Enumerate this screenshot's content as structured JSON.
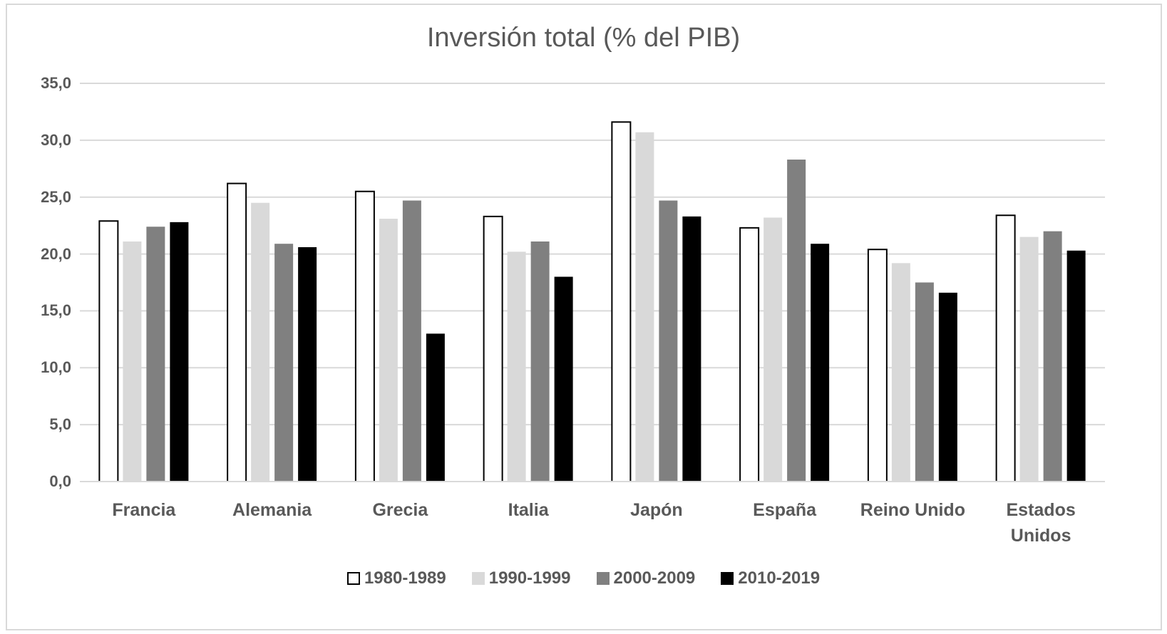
{
  "chart_data": {
    "type": "bar",
    "title": "Inversión total (% del PIB)",
    "categories": [
      "Francia",
      "Alemania",
      "Grecia",
      "Italia",
      "Japón",
      "España",
      "Reino Unido",
      "Estados Unidos"
    ],
    "series": [
      {
        "name": "1980-1989",
        "color": "#ffffff",
        "values": [
          22.9,
          26.2,
          25.5,
          23.3,
          31.6,
          22.3,
          20.4,
          23.4
        ]
      },
      {
        "name": "1990-1999",
        "color": "#d9d9d9",
        "values": [
          21.1,
          24.5,
          23.1,
          20.2,
          30.7,
          23.2,
          19.2,
          21.5
        ]
      },
      {
        "name": "2000-2009",
        "color": "#808080",
        "values": [
          22.4,
          20.9,
          24.7,
          21.1,
          24.7,
          28.3,
          17.5,
          22.0
        ]
      },
      {
        "name": "2010-2019",
        "color": "#000000",
        "values": [
          22.8,
          20.6,
          13.0,
          18.0,
          23.3,
          20.9,
          16.6,
          20.3
        ]
      }
    ],
    "ylim": [
      0,
      35
    ],
    "yticks": [
      {
        "value": 0,
        "label": "0,0"
      },
      {
        "value": 5,
        "label": "5,0"
      },
      {
        "value": 10,
        "label": "10,0"
      },
      {
        "value": 15,
        "label": "15,0"
      },
      {
        "value": 20,
        "label": "20,0"
      },
      {
        "value": 25,
        "label": "25,0"
      },
      {
        "value": 30,
        "label": "30,0"
      },
      {
        "value": 35,
        "label": "35,0"
      }
    ],
    "grid": true,
    "legend": "bottom"
  }
}
